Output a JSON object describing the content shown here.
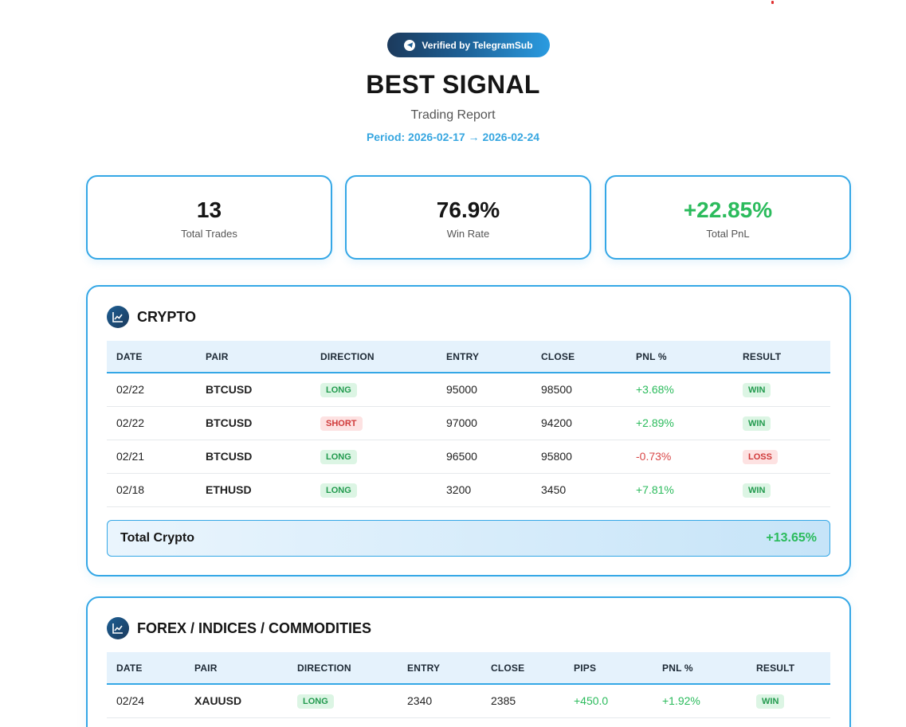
{
  "header": {
    "badge": "Verified by TelegramSub",
    "title": "BEST SIGNAL",
    "subtitle": "Trading Report",
    "period": "Period: 2026-02-17 → 2026-02-24"
  },
  "stats": [
    {
      "value": "13",
      "label": "Total Trades"
    },
    {
      "value": "76.9%",
      "label": "Win Rate"
    },
    {
      "value": "+22.85%",
      "label": "Total PnL"
    }
  ],
  "crypto": {
    "title": "CRYPTO",
    "headers": [
      "DATE",
      "PAIR",
      "DIRECTION",
      "ENTRY",
      "CLOSE",
      "PNL %",
      "RESULT"
    ],
    "rows": [
      {
        "date": "02/22",
        "pair": "BTCUSD",
        "direction": "LONG",
        "entry": "95000",
        "close": "98500",
        "pnl": "+3.68%",
        "result": "WIN"
      },
      {
        "date": "02/22",
        "pair": "BTCUSD",
        "direction": "SHORT",
        "entry": "97000",
        "close": "94200",
        "pnl": "+2.89%",
        "result": "WIN"
      },
      {
        "date": "02/21",
        "pair": "BTCUSD",
        "direction": "LONG",
        "entry": "96500",
        "close": "95800",
        "pnl": "-0.73%",
        "result": "LOSS"
      },
      {
        "date": "02/18",
        "pair": "ETHUSD",
        "direction": "LONG",
        "entry": "3200",
        "close": "3450",
        "pnl": "+7.81%",
        "result": "WIN"
      }
    ],
    "total_label": "Total Crypto",
    "total_value": "+13.65%"
  },
  "forex": {
    "title": "FOREX / INDICES / COMMODITIES",
    "headers": [
      "DATE",
      "PAIR",
      "DIRECTION",
      "ENTRY",
      "CLOSE",
      "PIPS",
      "PNL %",
      "RESULT"
    ],
    "rows": [
      {
        "date": "02/24",
        "pair": "XAUUSD",
        "direction": "LONG",
        "entry": "2340",
        "close": "2385",
        "pips": "+450.0",
        "pnl": "+1.92%",
        "result": "WIN"
      }
    ]
  },
  "colors": {
    "accent": "#34a7e6",
    "positive": "#2bbb5c",
    "negative": "#d94848"
  }
}
